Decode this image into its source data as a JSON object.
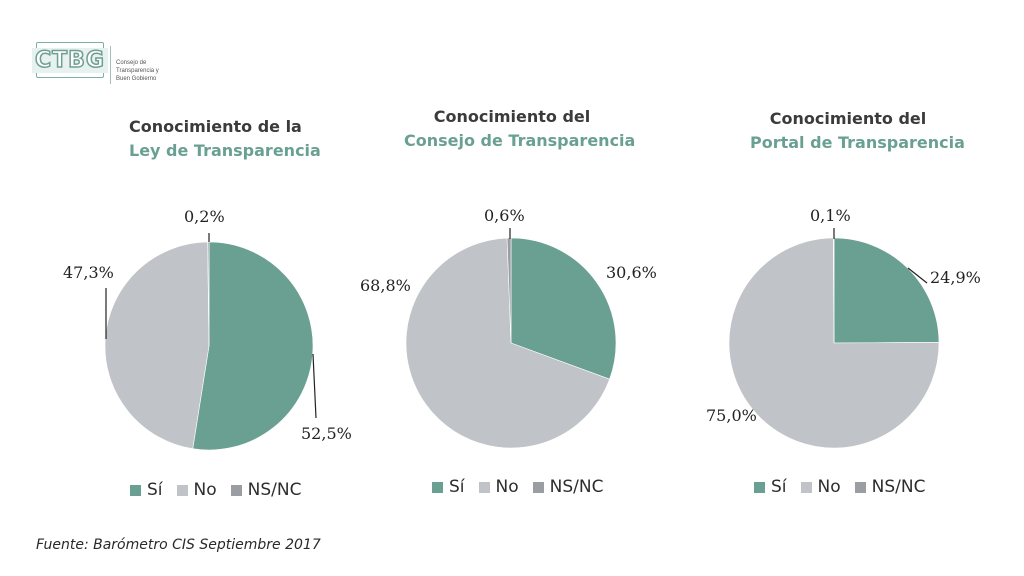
{
  "logo": {
    "mark": "CTBG",
    "line1": "Consejo de",
    "line2": "Transparencia y",
    "line3": "Buen Gobierno"
  },
  "colors": {
    "si": "#6aa092",
    "no": "#c0c3c7",
    "nsnc": "#9a9ea3",
    "title_accent": "#6aa092"
  },
  "legend": [
    {
      "label": "Sí",
      "color": "#6aa092"
    },
    {
      "label": "No",
      "color": "#c0c3c7"
    },
    {
      "label": "NS/NC",
      "color": "#9a9ea3"
    }
  ],
  "chart_data": [
    {
      "type": "pie",
      "title_line1": "Conocimiento de la",
      "title_line2": "Ley de Transparencia",
      "slices": [
        {
          "category": "Sí",
          "value": 52.5,
          "label": "52,5%"
        },
        {
          "category": "No",
          "value": 47.3,
          "label": "47,3%"
        },
        {
          "category": "NS/NC",
          "value": 0.2,
          "label": "0,2%"
        }
      ]
    },
    {
      "type": "pie",
      "title_line1": "Conocimiento del",
      "title_line2": "Consejo de Transparencia",
      "slices": [
        {
          "category": "Sí",
          "value": 30.6,
          "label": "30,6%"
        },
        {
          "category": "No",
          "value": 68.8,
          "label": "68,8%"
        },
        {
          "category": "NS/NC",
          "value": 0.6,
          "label": "0,6%"
        }
      ]
    },
    {
      "type": "pie",
      "title_line1": "Conocimiento del",
      "title_line2": "Portal de Transparencia",
      "slices": [
        {
          "category": "Sí",
          "value": 24.9,
          "label": "24,9%"
        },
        {
          "category": "No",
          "value": 75.0,
          "label": "75,0%"
        },
        {
          "category": "NS/NC",
          "value": 0.1,
          "label": "0,1%"
        }
      ]
    }
  ],
  "source": "Fuente: Barómetro CIS Septiembre 2017"
}
